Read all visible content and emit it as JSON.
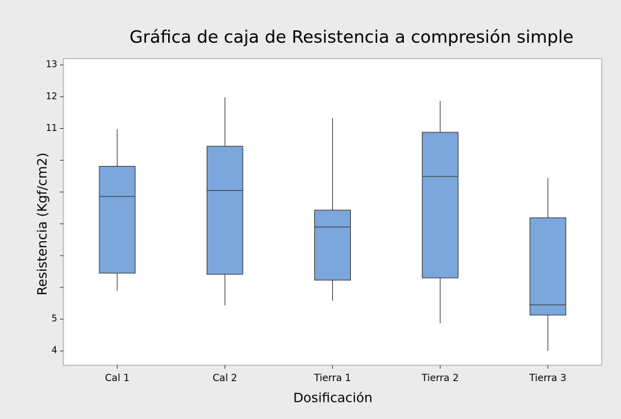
{
  "chart_data": {
    "type": "box",
    "title": "Gráfica de caja de Resistencia a compresión simple",
    "x_label": "Dosificación",
    "y_label": "Resistencia (Kgf/cm2)",
    "categories": [
      "Cal 1",
      "Cal 2",
      "Tierra 1",
      "Tierra 2",
      "Tierra 3"
    ],
    "boxes": [
      {
        "min": 5.89,
        "q1": 6.45,
        "median": 8.86,
        "q3": 9.81,
        "max": 10.98
      },
      {
        "min": 5.43,
        "q1": 6.41,
        "median": 9.05,
        "q3": 10.44,
        "max": 11.98
      },
      {
        "min": 5.58,
        "q1": 6.23,
        "median": 7.9,
        "q3": 8.43,
        "max": 11.33
      },
      {
        "min": 4.87,
        "q1": 6.3,
        "median": 9.49,
        "q3": 10.88,
        "max": 11.87
      },
      {
        "min": 4.0,
        "q1": 5.13,
        "median": 5.45,
        "q3": 8.19,
        "max": 9.44
      }
    ],
    "color": "#7ba7dc",
    "ylim": [
      3.55,
      13.2
    ],
    "yticks": [
      4,
      5,
      11,
      12,
      13
    ],
    "minor_yticks": [
      6,
      7,
      8,
      9,
      10
    ]
  }
}
